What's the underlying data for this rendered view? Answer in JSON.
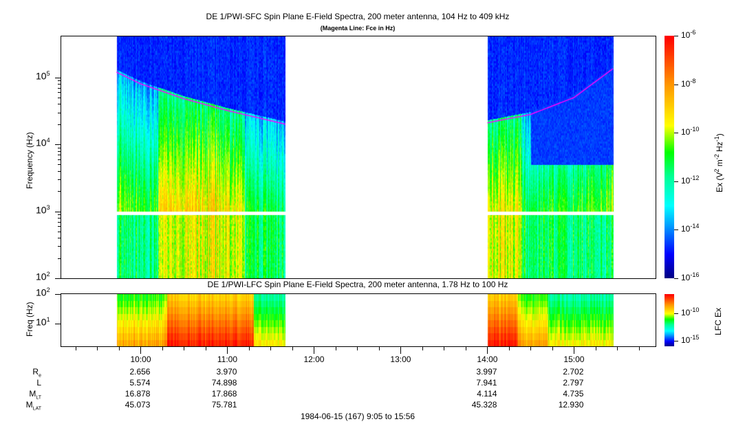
{
  "chart_data": [
    {
      "type": "heatmap",
      "title": "DE 1/PWI-SFC  Spin Plane E-Field Spectra, 200 meter antenna, 104 Hz to 409 kHz",
      "subtitle": "(Magenta Line: Fce in Hz)",
      "ylabel": "Frequency (Hz)",
      "yscale": "log",
      "ylim": [
        100,
        409000
      ],
      "y_ticks": [
        {
          "base": "10",
          "exp": "2"
        },
        {
          "base": "10",
          "exp": "3"
        },
        {
          "base": "10",
          "exp": "4"
        },
        {
          "base": "10",
          "exp": "5"
        }
      ],
      "x_range_hours": [
        9.0833,
        15.9333
      ],
      "data_segments_hours": [
        [
          9.72,
          11.67
        ],
        [
          14.0,
          15.45
        ]
      ],
      "colorbar": {
        "label": "Ex (V",
        "label_full": "Ex (V2 m-2 Hz-1)",
        "range_log10": [
          -16,
          -6
        ],
        "ticks": [
          {
            "base": "10",
            "exp": "-6"
          },
          {
            "base": "10",
            "exp": "-8"
          },
          {
            "base": "10",
            "exp": "-10"
          },
          {
            "base": "10",
            "exp": "-12"
          },
          {
            "base": "10",
            "exp": "-14"
          },
          {
            "base": "10",
            "exp": "-16"
          }
        ]
      },
      "fce_line": {
        "color": "#ff00ff",
        "points_hours_hz": [
          [
            9.72,
            120000
          ],
          [
            10.0,
            80000
          ],
          [
            10.5,
            48000
          ],
          [
            11.0,
            32000
          ],
          [
            11.67,
            20000
          ],
          [
            14.0,
            21000
          ],
          [
            14.5,
            28000
          ],
          [
            15.0,
            50000
          ],
          [
            15.45,
            135000
          ]
        ]
      }
    },
    {
      "type": "heatmap",
      "title": "DE 1/PWI-LFC  Spin Plane E-Field Spectra, 200 meter antenna, 1.78 Hz to 100 Hz",
      "ylabel": "Freq (Hz)",
      "yscale": "log",
      "ylim": [
        1.78,
        100
      ],
      "y_ticks": [
        {
          "base": "10",
          "exp": "1"
        },
        {
          "base": "10",
          "exp": "2"
        }
      ],
      "colorbar": {
        "label": "LFC Ex",
        "ticks": [
          {
            "base": "10",
            "exp": "-10"
          },
          {
            "base": "10",
            "exp": "-15"
          }
        ]
      }
    }
  ],
  "x_axis": {
    "ticks": [
      "10:00",
      "11:00",
      "12:00",
      "13:00",
      "14:00",
      "15:00"
    ],
    "tick_hours": [
      10,
      11,
      12,
      13,
      14,
      15
    ],
    "footer": "1984-06-15 (167) 9:05 to 15:56"
  },
  "ephemeris": {
    "rows": [
      {
        "label": "R",
        "sub": "e",
        "values": [
          "2.656",
          "3.970",
          "",
          "",
          "3.997",
          "2.702"
        ]
      },
      {
        "label": "L",
        "sub": "",
        "values": [
          "5.574",
          "74.898",
          "",
          "",
          "7.941",
          "2.797"
        ]
      },
      {
        "label": "M",
        "sub": "LT",
        "values": [
          "16.878",
          "17.868",
          "",
          "",
          "4.114",
          "4.735"
        ]
      },
      {
        "label": "M",
        "sub": "LAT",
        "values": [
          "45.073",
          "75.781",
          "",
          "",
          "45.328",
          "12.930"
        ]
      }
    ]
  }
}
